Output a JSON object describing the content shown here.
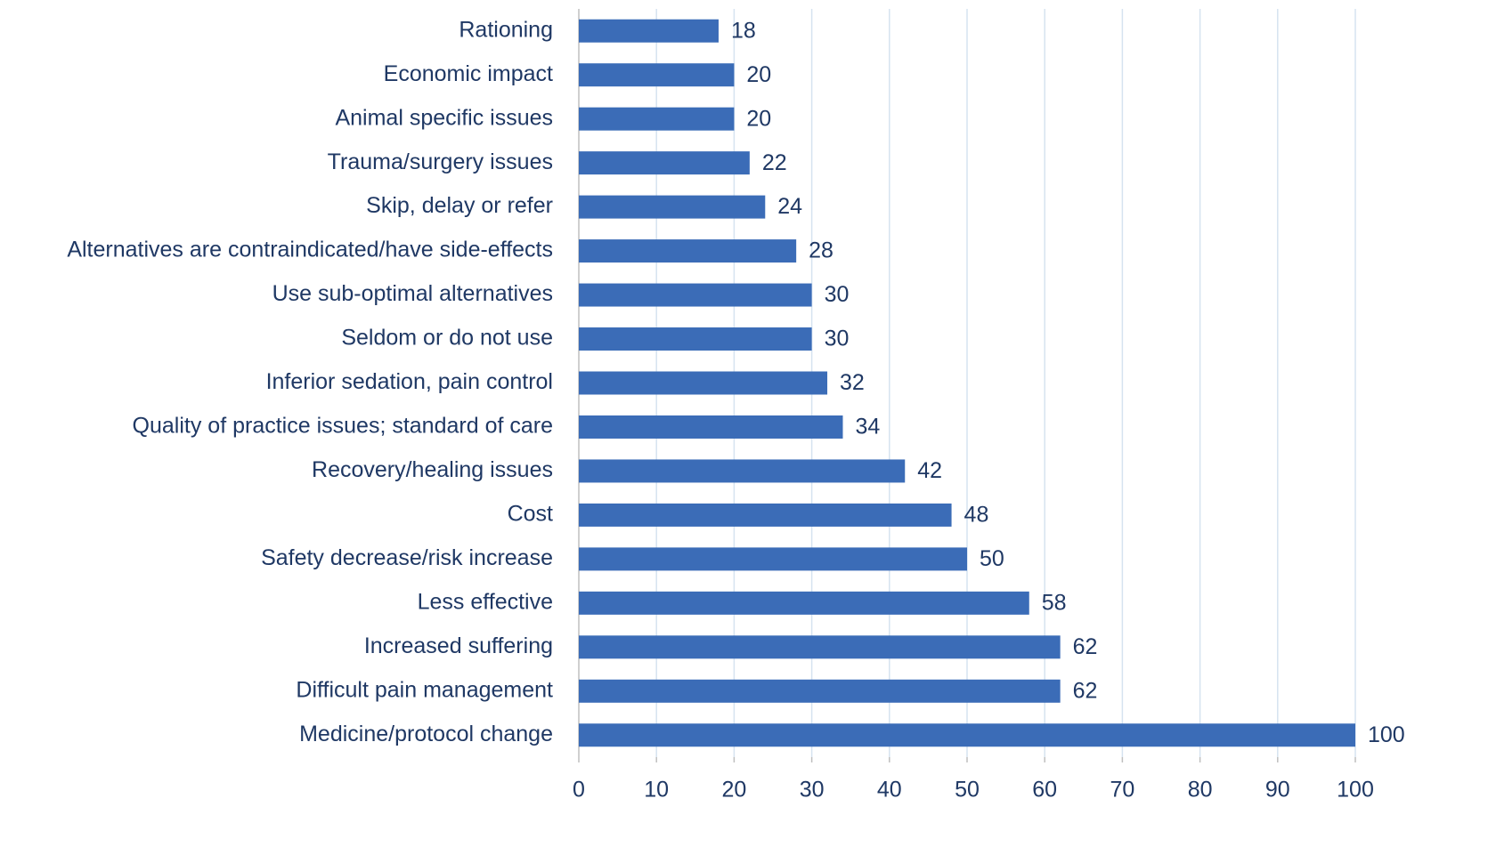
{
  "chart_data": {
    "type": "bar",
    "orientation": "horizontal",
    "categories": [
      "Rationing",
      "Economic impact",
      "Animal specific issues",
      "Trauma/surgery issues",
      "Skip, delay or refer",
      "Alternatives are contraindicated/have side-effects",
      "Use sub-optimal alternatives",
      "Seldom or do not use",
      "Inferior sedation, pain control",
      "Quality of practice issues; standard of care",
      "Recovery/healing issues",
      "Cost",
      "Safety decrease/risk increase",
      "Less effective",
      "Increased suffering",
      "Difficult pain management",
      "Medicine/protocol change"
    ],
    "values": [
      18,
      20,
      20,
      22,
      24,
      28,
      30,
      30,
      32,
      34,
      42,
      48,
      50,
      58,
      62,
      62,
      100
    ],
    "color": "#3b6cb7",
    "xlim": [
      0,
      100
    ],
    "xticks": [
      0,
      10,
      20,
      30,
      40,
      50,
      60,
      70,
      80,
      90,
      100
    ],
    "grid": true
  }
}
